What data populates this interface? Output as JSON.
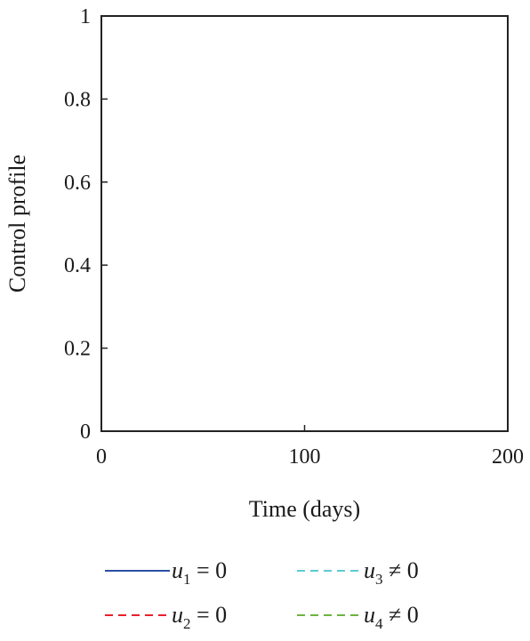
{
  "chart_data": {
    "type": "line",
    "title": "",
    "xlabel": "Time (days)",
    "ylabel": "Control profile",
    "xlim": [
      0,
      200
    ],
    "ylim": [
      0,
      1
    ],
    "xticks": [
      0,
      100,
      200
    ],
    "xtick_labels": [
      "0",
      "100",
      "200"
    ],
    "yticks": [
      0,
      0.2,
      0.4,
      0.6,
      0.8,
      1
    ],
    "ytick_labels": [
      "0",
      "0.2",
      "0.4",
      "0.6",
      "0.8",
      "1"
    ],
    "grid": false,
    "legend_position": "bottom",
    "series": [
      {
        "var": "u",
        "sub": "1",
        "rel": " = 0",
        "color": "#2b4ea2",
        "dash": "solid",
        "x": [
          0,
          200
        ],
        "y": [
          0,
          0
        ]
      },
      {
        "var": "u",
        "sub": "2",
        "rel": " = 0",
        "color": "#e8202a",
        "dash": "dashed",
        "x": [
          0,
          200
        ],
        "y": [
          0,
          0
        ]
      },
      {
        "var": "u",
        "sub": "3",
        "rel": " ≠ 0",
        "color": "#5bcbd3",
        "dash": "dashed",
        "x": [
          0,
          200,
          200
        ],
        "y": [
          1,
          1,
          0
        ]
      },
      {
        "var": "u",
        "sub": "4",
        "rel": " ≠ 0",
        "color": "#6db33f",
        "dash": "dashed",
        "x": [
          0,
          200,
          200
        ],
        "y": [
          1,
          1,
          0
        ]
      }
    ]
  }
}
